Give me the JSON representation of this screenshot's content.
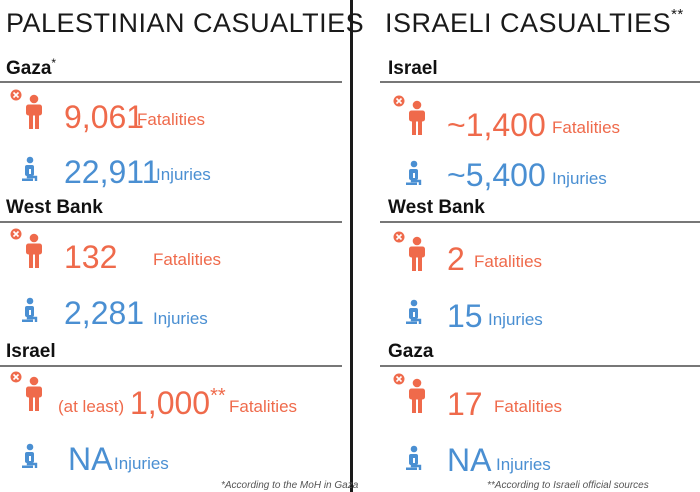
{
  "left": {
    "title": "PALESTINIAN CASUALTIES",
    "sections": [
      {
        "heading": "Gaza",
        "heading_mark": "*",
        "fatalities": {
          "value": "9,061",
          "label": "Fatalities"
        },
        "injuries": {
          "value": "22,911",
          "label": "Injuries"
        }
      },
      {
        "heading": "West Bank",
        "heading_mark": "",
        "fatalities": {
          "value": "132",
          "label": "Fatalities"
        },
        "injuries": {
          "value": "2,281",
          "label": "Injuries"
        }
      },
      {
        "heading": "Israel",
        "heading_mark": "",
        "fatalities": {
          "prefix": "(at least)",
          "value": "1,000",
          "value_mark": "**",
          "label": "Fatalities"
        },
        "injuries": {
          "value": "NA",
          "label": "Injuries"
        }
      }
    ],
    "footnote": "*According to the MoH in Gaza"
  },
  "right": {
    "title": "ISRAELI CASUALTIES",
    "title_mark": "**",
    "sections": [
      {
        "heading": "Israel",
        "fatalities": {
          "value": "~1,400",
          "label": "Fatalities"
        },
        "injuries": {
          "value": "~5,400",
          "label": "Injuries"
        }
      },
      {
        "heading": "West Bank",
        "fatalities": {
          "value": "2",
          "label": "Fatalities"
        },
        "injuries": {
          "value": "15",
          "label": "Injuries"
        }
      },
      {
        "heading": "Gaza",
        "fatalities": {
          "value": "17",
          "label": "Fatalities"
        },
        "injuries": {
          "value": "NA",
          "label": "Injuries"
        }
      }
    ],
    "footnote": "**According to Israeli official sources"
  },
  "colors": {
    "fatality": "#ef6a4b",
    "injury": "#4a8fd2"
  },
  "icons": {
    "fatality": "person-fatality-icon",
    "injury": "person-injury-icon"
  }
}
